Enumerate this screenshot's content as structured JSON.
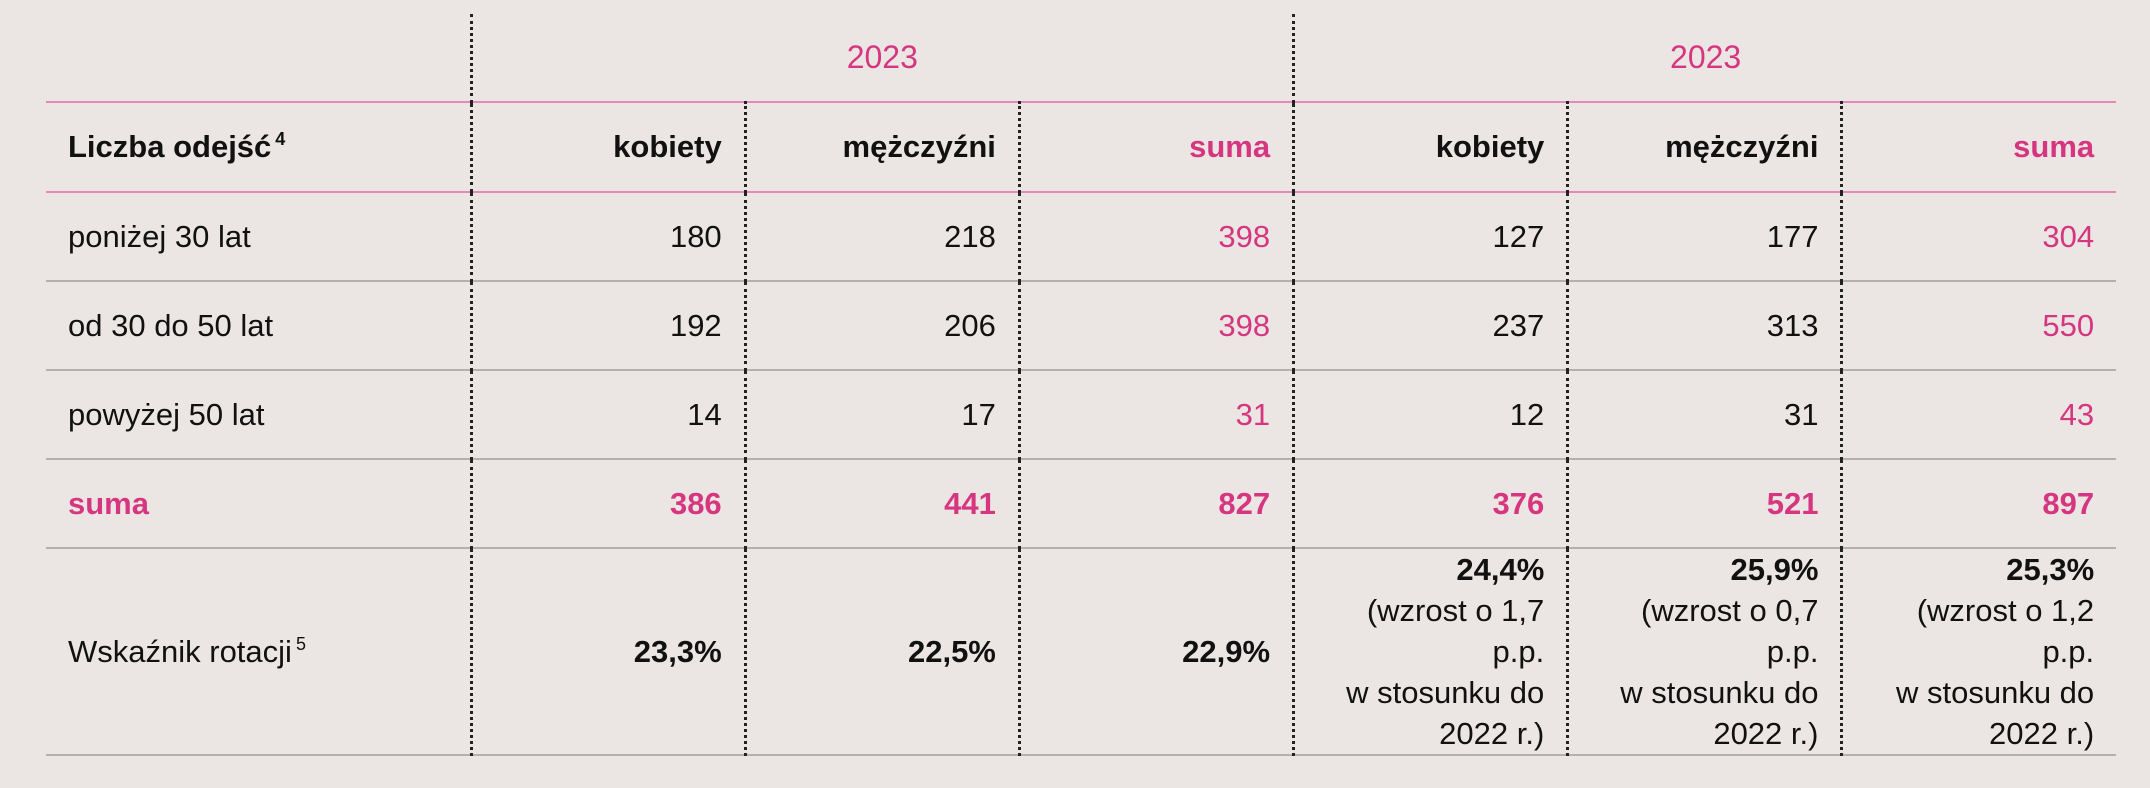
{
  "year_groups": [
    "2023",
    "2023"
  ],
  "header": {
    "row_label": "Liczba odejść",
    "row_label_footnote": "4",
    "columns": [
      "kobiety",
      "mężczyźni",
      "suma",
      "kobiety",
      "mężczyźni",
      "suma"
    ]
  },
  "rows": [
    {
      "label": "poniżej 30 lat",
      "values": [
        "180",
        "218",
        "398",
        "127",
        "177",
        "304"
      ]
    },
    {
      "label": "od 30 do 50 lat",
      "values": [
        "192",
        "206",
        "398",
        "237",
        "313",
        "550"
      ]
    },
    {
      "label": "powyżej 50 lat",
      "values": [
        "14",
        "17",
        "31",
        "12",
        "31",
        "43"
      ]
    }
  ],
  "total_row": {
    "label": "suma",
    "values": [
      "386",
      "441",
      "827",
      "376",
      "521",
      "897"
    ]
  },
  "rotation_row": {
    "label": "Wskaźnik rotacji",
    "footnote": "5",
    "values": [
      {
        "main": "23,3%"
      },
      {
        "main": "22,5%"
      },
      {
        "main": "22,9%"
      },
      {
        "main": "24,4%",
        "note_lines": [
          "(wzrost o 1,7 p.p.",
          "w stosunku do",
          "2022 r.)"
        ]
      },
      {
        "main": "25,9%",
        "note_lines": [
          "(wzrost o 0,7 p.p.",
          "w stosunku do",
          "2022 r.)"
        ]
      },
      {
        "main": "25,3%",
        "note_lines": [
          "(wzrost o 1,2 p.p.",
          "w stosunku do",
          "2022 r.)"
        ]
      }
    ]
  },
  "colors": {
    "accent": "#d6357f",
    "background": "#ebe6e3",
    "rule": "#b4b0ad"
  }
}
